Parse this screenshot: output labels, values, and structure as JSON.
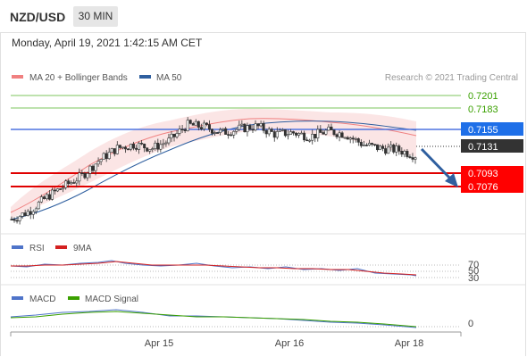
{
  "header": {
    "pair": "NZD/USD",
    "timeframe": "30 MIN",
    "datetime": "Monday, April 19, 2021 1:42:15 AM CET"
  },
  "chart_data": [
    {
      "type": "candlestick",
      "legend": [
        {
          "name": "MA 20 + Bollinger Bands",
          "color": "#f08080"
        },
        {
          "name": "MA 50",
          "color": "#2f5f9f"
        }
      ],
      "watermark": "Research © 2021 Trading Central",
      "x_ticks": [
        "Apr 15",
        "Apr 16",
        "Apr 18"
      ],
      "price_levels": [
        {
          "label": "0.7201",
          "style": "thin-green"
        },
        {
          "label": "0.7183",
          "style": "thin-green"
        },
        {
          "label": "0.7155",
          "style": "blue"
        },
        {
          "label": "0.7131",
          "style": "current"
        },
        {
          "label": "0.7093",
          "style": "red"
        },
        {
          "label": "0.7076",
          "style": "red"
        }
      ],
      "ylim": [
        0.7045,
        0.7215
      ],
      "close_approx": [
        0.705,
        0.706,
        0.7078,
        0.7092,
        0.7105,
        0.7125,
        0.714,
        0.7145,
        0.714,
        0.715,
        0.717,
        0.7167,
        0.716,
        0.7165,
        0.7168,
        0.7158,
        0.716,
        0.7155,
        0.7162,
        0.7158,
        0.7145,
        0.714,
        0.7138,
        0.7131
      ],
      "annotation": "Arrow pointing down to 0.7076"
    },
    {
      "type": "line",
      "legend": [
        {
          "name": "RSI",
          "color": "#4f74c9"
        },
        {
          "name": "9MA",
          "color": "#d42020"
        }
      ],
      "y_ticks": [
        "70",
        "50",
        "30"
      ]
    },
    {
      "type": "line",
      "legend": [
        {
          "name": "MACD",
          "color": "#4f74c9"
        },
        {
          "name": "MACD Signal",
          "color": "#3aa000"
        }
      ],
      "y_ticks": [
        "0"
      ]
    }
  ]
}
